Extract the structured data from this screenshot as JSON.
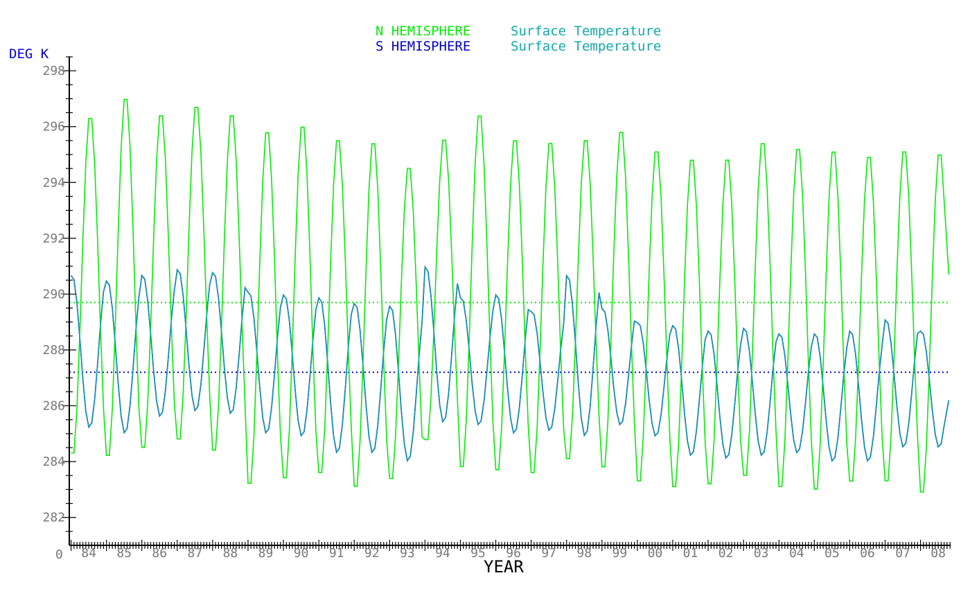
{
  "chart_data": {
    "type": "line",
    "title_lines": [
      {
        "hemisphere": "N HEMISPHERE",
        "quantity": "Surface Temperature"
      },
      {
        "hemisphere": "S HEMISPHERE",
        "quantity": "Surface Temperature"
      }
    ],
    "ylabel": "DEG K",
    "xlabel": "YEAR",
    "origin_label": "0",
    "ylim": [
      281,
      298.5
    ],
    "yticks": [
      282,
      284,
      286,
      288,
      290,
      292,
      294,
      296,
      298
    ],
    "x_range_years": [
      1983.95,
      2008.85
    ],
    "x_tick_labels": [
      "84",
      "85",
      "86",
      "87",
      "88",
      "89",
      "90",
      "91",
      "92",
      "93",
      "94",
      "95",
      "96",
      "97",
      "98",
      "99",
      "00",
      "01",
      "02",
      "03",
      "04",
      "05",
      "06",
      "07",
      "08"
    ],
    "colors": {
      "north": "#00ee00",
      "south": "#0000cc",
      "overlap": "#11aaaa",
      "title_quantity": "#11aaaa",
      "axis": "#000000",
      "ticks_label": "#777777",
      "ylabel": "#0000dd"
    },
    "series": [
      {
        "name": "N HEMISPHERE",
        "start_year": 1984.0,
        "step_years": 0.0833333,
        "mean_line": 289.7,
        "annual_max": [
          296.5,
          297.2,
          296.6,
          296.9,
          296.6,
          296.0,
          296.2,
          295.7,
          295.6,
          294.7,
          295.7,
          296.6,
          295.7,
          295.6,
          295.7,
          296.0,
          295.3,
          295.0,
          295.0,
          295.6,
          295.4,
          295.3,
          295.1,
          295.3,
          295.2
        ],
        "annual_min": [
          284.1,
          284.0,
          284.3,
          284.6,
          284.2,
          283.0,
          283.2,
          283.4,
          282.9,
          283.2,
          284.6,
          283.6,
          283.5,
          283.4,
          283.9,
          283.6,
          283.1,
          282.9,
          283.0,
          283.3,
          282.9,
          282.8,
          283.1,
          283.1,
          282.7
        ],
        "end_value": 290.7
      },
      {
        "name": "S HEMISPHERE",
        "start_year": 1984.0,
        "step_years": 0.0833333,
        "mean_line": 287.2,
        "annual_max": [
          290.7,
          290.5,
          290.7,
          290.9,
          290.8,
          290.1,
          290.0,
          289.9,
          289.7,
          289.6,
          291.0,
          289.9,
          290.0,
          289.4,
          290.7,
          289.5,
          289.0,
          288.9,
          288.7,
          288.8,
          288.6,
          288.6,
          288.7,
          289.1,
          288.7
        ],
        "annual_min": [
          285.2,
          285.0,
          285.6,
          285.8,
          285.7,
          285.0,
          284.9,
          284.3,
          284.3,
          284.0,
          285.4,
          285.3,
          285.0,
          285.1,
          284.9,
          285.3,
          284.9,
          284.2,
          284.1,
          284.2,
          284.3,
          284.0,
          284.0,
          284.5,
          284.5
        ],
        "end_value": 286.2
      }
    ]
  }
}
